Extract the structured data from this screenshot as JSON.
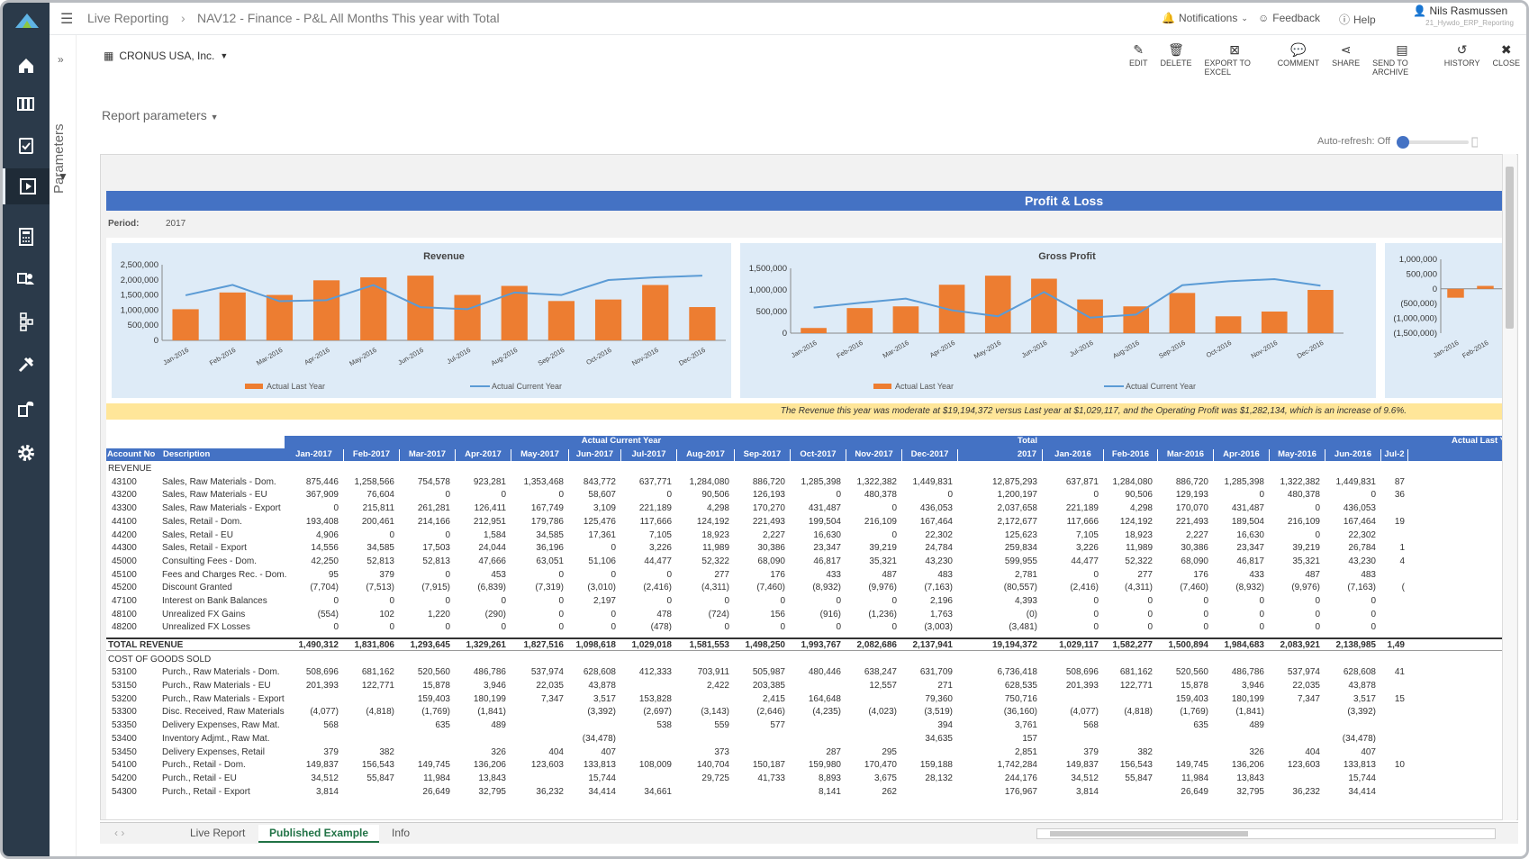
{
  "breadcrumb": [
    "Live Reporting",
    "NAV12 - Finance - P&L All Months This year with Total"
  ],
  "topbar": {
    "notifications": "Notifications",
    "feedback": "Feedback",
    "help": "Help",
    "user_name": "Nils Rasmussen",
    "user_sub": "21_Hywdo_ERP_Reporting"
  },
  "params_label": "Parameters",
  "company": "CRONUS USA, Inc.",
  "report_params": "Report parameters",
  "toolbar": [
    {
      "label": "EDIT",
      "icon": "pencil-icon"
    },
    {
      "label": "DELETE",
      "icon": "trash-icon"
    },
    {
      "label": "EXPORT TO EXCEL",
      "icon": "excel-icon"
    },
    {
      "label": "COMMENT",
      "icon": "comment-icon"
    },
    {
      "label": "SHARE",
      "icon": "share-icon"
    },
    {
      "label": "SEND TO ARCHIVE",
      "icon": "archive-icon"
    },
    {
      "label": "HISTORY",
      "icon": "history-icon"
    },
    {
      "label": "CLOSE",
      "icon": "close-icon"
    }
  ],
  "autorefresh": "Auto-refresh: Off",
  "report": {
    "title": "Profit & Loss",
    "period_label": "Period:",
    "period_value": "2017",
    "comment": "The Revenue this year was moderate at $19,194,372 versus Last year at $1,029,117, and the Operating Profit was $1,282,134, which is an increase of 9.6%."
  },
  "chart_data": [
    {
      "type": "bar",
      "title": "Revenue",
      "categories": [
        "Jan-2016",
        "Feb-2016",
        "Mar-2016",
        "Apr-2016",
        "May-2016",
        "Jun-2016",
        "Jul-2016",
        "Aug-2016",
        "Sep-2016",
        "Oct-2016",
        "Nov-2016",
        "Dec-2016"
      ],
      "series": [
        {
          "name": "Actual Last Year",
          "kind": "bar",
          "values": [
            1029117,
            1582277,
            1500894,
            1984683,
            2083921,
            2138985,
            1500000,
            1800000,
            1300000,
            1350000,
            1830000,
            1100000
          ]
        },
        {
          "name": "Actual Current Year",
          "kind": "line",
          "values": [
            1490312,
            1831806,
            1293645,
            1329261,
            1827516,
            1098618,
            1029018,
            1581553,
            1498250,
            1993767,
            2082686,
            2137941
          ]
        }
      ],
      "ylim": [
        0,
        2500000
      ],
      "yticks": [
        "2,500,000",
        "2,000,000",
        "1,500,000",
        "1,000,000",
        "500,000",
        "0"
      ]
    },
    {
      "type": "bar",
      "title": "Gross Profit",
      "categories": [
        "Jan-2016",
        "Feb-2016",
        "Mar-2016",
        "Apr-2016",
        "May-2016",
        "Jun-2016",
        "Jul-2016",
        "Aug-2016",
        "Sep-2016",
        "Oct-2016",
        "Nov-2016",
        "Dec-2016"
      ],
      "series": [
        {
          "name": "Actual Last Year",
          "kind": "bar",
          "values": [
            120000,
            580000,
            620000,
            1120000,
            1330000,
            1260000,
            780000,
            620000,
            930000,
            390000,
            500000,
            1000000
          ]
        },
        {
          "name": "Actual Current Year",
          "kind": "line",
          "values": [
            590000,
            700000,
            800000,
            530000,
            390000,
            950000,
            360000,
            430000,
            1110000,
            1200000,
            1250000,
            1100000
          ]
        }
      ],
      "ylim": [
        0,
        1500000
      ],
      "yticks": [
        "1,500,000",
        "1,000,000",
        "500,000",
        "0"
      ]
    },
    {
      "type": "bar",
      "title": "",
      "categories": [
        "Jan-2016",
        "Feb-2016"
      ],
      "series": [
        {
          "name": "",
          "kind": "bar",
          "values": [
            -300000,
            100000
          ]
        }
      ],
      "ylim": [
        -1500000,
        1000000
      ],
      "yticks": [
        "1,000,000",
        "500,000",
        "0",
        "(500,000)",
        "(1,000,000)",
        "(1,500,000)"
      ]
    }
  ],
  "table": {
    "group_headers": [
      "Actual Current Year",
      "Total",
      "Actual Last Y"
    ],
    "columns": [
      "Account No",
      "Description",
      "Jan-2017",
      "Feb-2017",
      "Mar-2017",
      "Apr-2017",
      "May-2017",
      "Jun-2017",
      "Jul-2017",
      "Aug-2017",
      "Sep-2017",
      "Oct-2017",
      "Nov-2017",
      "Dec-2017",
      "2017",
      "Jan-2016",
      "Feb-2016",
      "Mar-2016",
      "Apr-2016",
      "May-2016",
      "Jun-2016",
      "Jul-2"
    ],
    "rows": [
      {
        "kind": "sec",
        "acc": "REVENUE",
        "desc": "",
        "v": []
      },
      {
        "kind": "row",
        "acc": "43100",
        "desc": "Sales, Raw Materials - Dom.",
        "v": [
          "875,446",
          "1,258,566",
          "754,578",
          "923,281",
          "1,353,468",
          "843,772",
          "637,771",
          "1,284,080",
          "886,720",
          "1,285,398",
          "1,322,382",
          "1,449,831",
          "12,875,293",
          "637,871",
          "1,284,080",
          "886,720",
          "1,285,398",
          "1,322,382",
          "1,449,831",
          "87"
        ]
      },
      {
        "kind": "row",
        "acc": "43200",
        "desc": "Sales, Raw Materials - EU",
        "v": [
          "367,909",
          "76,604",
          "0",
          "0",
          "0",
          "58,607",
          "0",
          "90,506",
          "126,193",
          "0",
          "480,378",
          "0",
          "1,200,197",
          "0",
          "90,506",
          "129,193",
          "0",
          "480,378",
          "0",
          "36"
        ]
      },
      {
        "kind": "row",
        "acc": "43300",
        "desc": "Sales, Raw Materials - Export",
        "v": [
          "0",
          "215,811",
          "261,281",
          "126,411",
          "167,749",
          "3,109",
          "221,189",
          "4,298",
          "170,270",
          "431,487",
          "0",
          "436,053",
          "2,037,658",
          "221,189",
          "4,298",
          "170,070",
          "431,487",
          "0",
          "436,053",
          ""
        ]
      },
      {
        "kind": "row",
        "acc": "44100",
        "desc": "Sales, Retail - Dom.",
        "v": [
          "193,408",
          "200,461",
          "214,166",
          "212,951",
          "179,786",
          "125,476",
          "117,666",
          "124,192",
          "221,493",
          "199,504",
          "216,109",
          "167,464",
          "2,172,677",
          "117,666",
          "124,192",
          "221,493",
          "189,504",
          "216,109",
          "167,464",
          "19"
        ]
      },
      {
        "kind": "row",
        "acc": "44200",
        "desc": "Sales, Retail - EU",
        "v": [
          "4,906",
          "0",
          "0",
          "1,584",
          "34,585",
          "17,361",
          "7,105",
          "18,923",
          "2,227",
          "16,630",
          "0",
          "22,302",
          "125,623",
          "7,105",
          "18,923",
          "2,227",
          "16,630",
          "0",
          "22,302",
          ""
        ]
      },
      {
        "kind": "row",
        "acc": "44300",
        "desc": "Sales, Retail - Export",
        "v": [
          "14,556",
          "34,585",
          "17,503",
          "24,044",
          "36,196",
          "0",
          "3,226",
          "11,989",
          "30,386",
          "23,347",
          "39,219",
          "24,784",
          "259,834",
          "3,226",
          "11,989",
          "30,386",
          "23,347",
          "39,219",
          "26,784",
          "1"
        ]
      },
      {
        "kind": "row",
        "acc": "45000",
        "desc": "Consulting Fees - Dom.",
        "v": [
          "42,250",
          "52,813",
          "52,813",
          "47,666",
          "63,051",
          "51,106",
          "44,477",
          "52,322",
          "68,090",
          "46,817",
          "35,321",
          "43,230",
          "599,955",
          "44,477",
          "52,322",
          "68,090",
          "46,817",
          "35,321",
          "43,230",
          "4"
        ]
      },
      {
        "kind": "row",
        "acc": "45100",
        "desc": "Fees and Charges Rec. - Dom.",
        "v": [
          "95",
          "379",
          "0",
          "453",
          "0",
          "0",
          "0",
          "277",
          "176",
          "433",
          "487",
          "483",
          "2,781",
          "0",
          "277",
          "176",
          "433",
          "487",
          "483",
          ""
        ]
      },
      {
        "kind": "row",
        "acc": "45200",
        "desc": "Discount Granted",
        "v": [
          "(7,704)",
          "(7,513)",
          "(7,915)",
          "(6,839)",
          "(7,319)",
          "(3,010)",
          "(2,416)",
          "(4,311)",
          "(7,460)",
          "(8,932)",
          "(9,976)",
          "(7,163)",
          "(80,557)",
          "(2,416)",
          "(4,311)",
          "(7,460)",
          "(8,932)",
          "(9,976)",
          "(7,163)",
          "("
        ]
      },
      {
        "kind": "row",
        "acc": "47100",
        "desc": "Interest on Bank Balances",
        "v": [
          "0",
          "0",
          "0",
          "0",
          "0",
          "2,197",
          "0",
          "0",
          "0",
          "0",
          "0",
          "2,196",
          "4,393",
          "0",
          "0",
          "0",
          "0",
          "0",
          "0",
          ""
        ]
      },
      {
        "kind": "row",
        "acc": "48100",
        "desc": "Unrealized FX Gains",
        "v": [
          "(554)",
          "102",
          "1,220",
          "(290)",
          "0",
          "0",
          "478",
          "(724)",
          "156",
          "(916)",
          "(1,236)",
          "1,763",
          "(0)",
          "0",
          "0",
          "0",
          "0",
          "0",
          "0",
          ""
        ]
      },
      {
        "kind": "row",
        "acc": "48200",
        "desc": "Unrealized FX Losses",
        "v": [
          "0",
          "0",
          "0",
          "0",
          "0",
          "0",
          "(478)",
          "0",
          "0",
          "0",
          "0",
          "(3,003)",
          "(3,481)",
          "0",
          "0",
          "0",
          "0",
          "0",
          "0",
          ""
        ]
      },
      {
        "kind": "tot",
        "acc": "TOTAL REVENUE",
        "desc": "",
        "v": [
          "1,490,312",
          "1,831,806",
          "1,293,645",
          "1,329,261",
          "1,827,516",
          "1,098,618",
          "1,029,018",
          "1,581,553",
          "1,498,250",
          "1,993,767",
          "2,082,686",
          "2,137,941",
          "19,194,372",
          "1,029,117",
          "1,582,277",
          "1,500,894",
          "1,984,683",
          "2,083,921",
          "2,138,985",
          "1,49"
        ]
      },
      {
        "kind": "sec",
        "acc": "COST OF GOODS SOLD",
        "desc": "",
        "v": []
      },
      {
        "kind": "row",
        "acc": "53100",
        "desc": "Purch., Raw Materials - Dom.",
        "v": [
          "508,696",
          "681,162",
          "520,560",
          "486,786",
          "537,974",
          "628,608",
          "412,333",
          "703,911",
          "505,987",
          "480,446",
          "638,247",
          "631,709",
          "6,736,418",
          "508,696",
          "681,162",
          "520,560",
          "486,786",
          "537,974",
          "628,608",
          "41"
        ]
      },
      {
        "kind": "row",
        "acc": "53150",
        "desc": "Purch., Raw Materials - EU",
        "v": [
          "201,393",
          "122,771",
          "15,878",
          "3,946",
          "22,035",
          "43,878",
          "",
          "2,422",
          "203,385",
          "",
          "12,557",
          "271",
          "628,535",
          "201,393",
          "122,771",
          "15,878",
          "3,946",
          "22,035",
          "43,878",
          ""
        ]
      },
      {
        "kind": "row",
        "acc": "53200",
        "desc": "Purch., Raw Materials - Export",
        "v": [
          "",
          "",
          "159,403",
          "180,199",
          "7,347",
          "3,517",
          "153,828",
          "",
          "2,415",
          "164,648",
          "",
          "79,360",
          "750,716",
          "",
          "",
          "159,403",
          "180,199",
          "7,347",
          "3,517",
          "15"
        ]
      },
      {
        "kind": "row",
        "acc": "53300",
        "desc": "Disc. Received, Raw Materials",
        "v": [
          "(4,077)",
          "(4,818)",
          "(1,769)",
          "(1,841)",
          "",
          "(3,392)",
          "(2,697)",
          "(3,143)",
          "(2,646)",
          "(4,235)",
          "(4,023)",
          "(3,519)",
          "(36,160)",
          "(4,077)",
          "(4,818)",
          "(1,769)",
          "(1,841)",
          "",
          "(3,392)",
          ""
        ]
      },
      {
        "kind": "row",
        "acc": "53350",
        "desc": "Delivery Expenses, Raw Mat.",
        "v": [
          "568",
          "",
          "635",
          "489",
          "",
          "",
          "538",
          "559",
          "577",
          "",
          "",
          "394",
          "3,761",
          "568",
          "",
          "635",
          "489",
          "",
          "",
          ""
        ]
      },
      {
        "kind": "row",
        "acc": "53400",
        "desc": "Inventory Adjmt., Raw Mat.",
        "v": [
          "",
          "",
          "",
          "",
          "",
          "(34,478)",
          "",
          "",
          "",
          "",
          "",
          "34,635",
          "157",
          "",
          "",
          "",
          "",
          "",
          "(34,478)",
          ""
        ]
      },
      {
        "kind": "row",
        "acc": "53450",
        "desc": "Delivery Expenses, Retail",
        "v": [
          "379",
          "382",
          "",
          "326",
          "404",
          "407",
          "",
          "373",
          "",
          "287",
          "295",
          "",
          "2,851",
          "379",
          "382",
          "",
          "326",
          "404",
          "407",
          ""
        ]
      },
      {
        "kind": "row",
        "acc": "54100",
        "desc": "Purch., Retail - Dom.",
        "v": [
          "149,837",
          "156,543",
          "149,745",
          "136,206",
          "123,603",
          "133,813",
          "108,009",
          "140,704",
          "150,187",
          "159,980",
          "170,470",
          "159,188",
          "1,742,284",
          "149,837",
          "156,543",
          "149,745",
          "136,206",
          "123,603",
          "133,813",
          "10"
        ]
      },
      {
        "kind": "row",
        "acc": "54200",
        "desc": "Purch., Retail - EU",
        "v": [
          "34,512",
          "55,847",
          "11,984",
          "13,843",
          "",
          "15,744",
          "",
          "29,725",
          "41,733",
          "8,893",
          "3,675",
          "28,132",
          "244,176",
          "34,512",
          "55,847",
          "11,984",
          "13,843",
          "",
          "15,744",
          ""
        ]
      },
      {
        "kind": "row",
        "acc": "54300",
        "desc": "Purch., Retail - Export",
        "v": [
          "3,814",
          "",
          "26,649",
          "32,795",
          "36,232",
          "34,414",
          "34,661",
          "",
          "",
          "8,141",
          "262",
          "",
          "176,967",
          "3,814",
          "",
          "26,649",
          "32,795",
          "36,232",
          "34,414",
          ""
        ]
      }
    ]
  },
  "tabs": [
    "Live Report",
    "Published Example",
    "Info"
  ]
}
